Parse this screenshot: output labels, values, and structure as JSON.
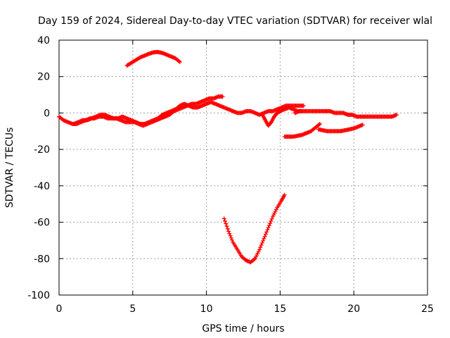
{
  "chart_data": {
    "type": "scatter",
    "title": "Day 159 of 2024, Sidereal Day-to-day VTEC variation (SDTVAR) for receiver wlal",
    "xlabel": "GPS time / hours",
    "ylabel": "SDTVAR / TECUs",
    "xlim": [
      0,
      25
    ],
    "ylim": [
      -100,
      40
    ],
    "xticks": [
      0,
      5,
      10,
      15,
      20,
      25
    ],
    "yticks": [
      -100,
      -80,
      -60,
      -40,
      -20,
      0,
      20,
      40
    ],
    "xtick_labels": [
      "0",
      "5",
      "10",
      "15",
      "20",
      "25"
    ],
    "ytick_labels": [
      "-100",
      "-80",
      "-60",
      "-40",
      "-20",
      "0",
      "20",
      "40"
    ],
    "grid": true,
    "marker": "plus",
    "color": "#ff0000",
    "series": [
      {
        "name": "arc1",
        "x": [
          0.0,
          0.3,
          0.6,
          0.9,
          1.2,
          1.5,
          1.8,
          2.1,
          2.4,
          2.7,
          3.0,
          3.3,
          3.6,
          3.9,
          4.2,
          4.5,
          4.8,
          5.1,
          5.4,
          5.7,
          6.0,
          6.3,
          6.6,
          6.9,
          7.2,
          7.5,
          7.8,
          8.1,
          8.4,
          8.7,
          9.0,
          9.3,
          9.6,
          9.9,
          10.2,
          10.5,
          10.8,
          11.1
        ],
        "y": [
          -2,
          -4,
          -5,
          -6,
          -6,
          -5,
          -4,
          -3,
          -3,
          -2,
          -2,
          -3,
          -3,
          -3,
          -4,
          -5,
          -5,
          -5,
          -6,
          -7,
          -6,
          -5,
          -4,
          -3,
          -2,
          -1,
          1,
          2,
          3,
          4,
          5,
          5,
          6,
          7,
          8,
          8,
          9,
          9
        ]
      },
      {
        "name": "arc2",
        "x": [
          1.0,
          1.3,
          1.6,
          1.9,
          2.2,
          2.5,
          2.8,
          3.1,
          3.4,
          3.7,
          4.0,
          4.3,
          4.6,
          4.9,
          5.2,
          5.5,
          5.8,
          6.1,
          6.4,
          6.7,
          7.0,
          7.3,
          7.6,
          7.9,
          8.2,
          8.5,
          8.8,
          9.1,
          9.4,
          9.7,
          10.0,
          10.3,
          10.6,
          10.9,
          11.2,
          11.5,
          11.8,
          12.1,
          12.4,
          12.7,
          13.0,
          13.3,
          13.6,
          13.9,
          14.2,
          14.5,
          14.8,
          15.1,
          15.4,
          15.7,
          16.0,
          16.3,
          16.6
        ],
        "y": [
          -6,
          -5,
          -4,
          -4,
          -3,
          -2,
          -1,
          -1,
          -2,
          -3,
          -3,
          -2,
          -3,
          -4,
          -5,
          -6,
          -6,
          -5,
          -4,
          -3,
          -1,
          0,
          1,
          2,
          4,
          5,
          4,
          3,
          3,
          4,
          5,
          6,
          5,
          4,
          3,
          2,
          1,
          0,
          0,
          1,
          1,
          0,
          -1,
          0,
          1,
          1,
          2,
          3,
          4,
          4,
          4,
          4,
          4
        ]
      },
      {
        "name": "arc3",
        "x": [
          4.6,
          4.9,
          5.2,
          5.5,
          5.8,
          6.1,
          6.4,
          6.7,
          7.0,
          7.3,
          7.6,
          7.9,
          8.2
        ],
        "y": [
          26,
          27.5,
          29,
          30.5,
          31.5,
          32.5,
          33.3,
          33.5,
          33,
          32,
          31,
          30,
          28
        ]
      },
      {
        "name": "arc4",
        "x": [
          11.2,
          11.5,
          11.8,
          12.1,
          12.4,
          12.7,
          13.0,
          13.3,
          13.6,
          13.9,
          14.2,
          14.5,
          14.8,
          15.1,
          15.3
        ],
        "y": [
          -58,
          -65,
          -71,
          -75,
          -79,
          -81,
          -82,
          -80,
          -75,
          -69,
          -63,
          -57,
          -52,
          -48,
          -45
        ]
      },
      {
        "name": "arc5",
        "x": [
          13.8,
          14.0,
          14.2,
          14.4,
          14.6,
          14.8,
          15.0,
          15.3,
          15.6,
          15.9,
          16.2,
          16.5
        ],
        "y": [
          -1,
          -4,
          -7,
          -5,
          -2,
          0,
          1,
          2,
          3,
          2,
          1,
          1
        ]
      },
      {
        "name": "arc6",
        "x": [
          16.0,
          16.3,
          16.6,
          16.9,
          17.2,
          17.5,
          17.8,
          18.1,
          18.4,
          18.7,
          19.0,
          19.3,
          19.6,
          19.9,
          20.2,
          20.5,
          20.8,
          21.1,
          21.4,
          21.7,
          22.0,
          22.3,
          22.6,
          22.9
        ],
        "y": [
          0,
          1,
          1,
          1,
          1,
          1,
          1,
          1,
          1,
          0,
          0,
          0,
          -1,
          -1,
          -2,
          -2,
          -2,
          -2,
          -2,
          -2,
          -2,
          -2,
          -2,
          -1
        ]
      },
      {
        "name": "arc7",
        "x": [
          15.3,
          15.6,
          15.9,
          16.2,
          16.5,
          16.8,
          17.1,
          17.4,
          17.7
        ],
        "y": [
          -13,
          -13,
          -13,
          -12.5,
          -12,
          -11,
          -10,
          -8,
          -6
        ]
      },
      {
        "name": "arc8",
        "x": [
          17.6,
          17.9,
          18.2,
          18.5,
          18.8,
          19.1,
          19.4,
          19.7,
          20.0,
          20.3,
          20.6
        ],
        "y": [
          -9,
          -9.5,
          -10,
          -10,
          -10,
          -10,
          -9.5,
          -9,
          -8.5,
          -7.5,
          -6.5
        ]
      }
    ]
  }
}
